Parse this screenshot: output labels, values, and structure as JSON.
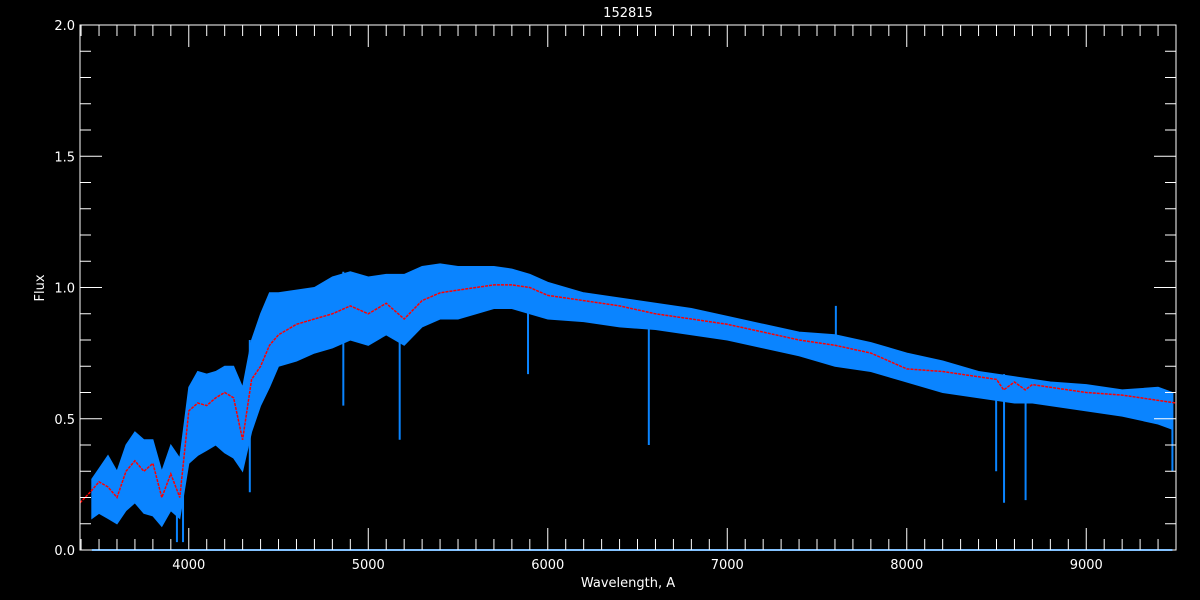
{
  "chart_data": {
    "type": "line",
    "title": "152815",
    "xlabel": "Wavelength, A",
    "ylabel": "Flux",
    "xlim": [
      3394,
      9500
    ],
    "ylim": [
      0.0,
      2.0
    ],
    "x_ticks": [
      4000,
      5000,
      6000,
      7000,
      8000,
      9000
    ],
    "x_minor_step": 100,
    "y_ticks": [
      {
        "value": 0.0,
        "label": "0.0"
      },
      {
        "value": 0.5,
        "label": "0.5"
      },
      {
        "value": 1.0,
        "label": "1.0"
      },
      {
        "value": 1.5,
        "label": "1.5"
      },
      {
        "value": 2.0,
        "label": "2.0"
      }
    ],
    "y_minor_step": 0.1,
    "grid": false,
    "background": "#000000",
    "colors": {
      "observed": "#0a84ff",
      "model": "#ff0000",
      "axes": "#ffffff"
    },
    "observed_band": {
      "x": [
        3460,
        3500,
        3550,
        3600,
        3650,
        3700,
        3750,
        3800,
        3850,
        3900,
        3950,
        4000,
        4050,
        4100,
        4150,
        4200,
        4250,
        4300,
        4350,
        4400,
        4450,
        4500,
        4600,
        4700,
        4800,
        4900,
        5000,
        5100,
        5200,
        5300,
        5400,
        5500,
        5600,
        5700,
        5800,
        5900,
        6000,
        6200,
        6400,
        6600,
        6800,
        7000,
        7200,
        7400,
        7600,
        7800,
        8000,
        8200,
        8400,
        8500,
        8600,
        8700,
        8800,
        9000,
        9200,
        9400,
        9480
      ],
      "upper": [
        0.27,
        0.31,
        0.36,
        0.3,
        0.4,
        0.45,
        0.42,
        0.42,
        0.3,
        0.4,
        0.35,
        0.62,
        0.68,
        0.67,
        0.68,
        0.7,
        0.7,
        0.62,
        0.8,
        0.9,
        0.98,
        0.98,
        0.99,
        1.0,
        1.04,
        1.06,
        1.04,
        1.05,
        1.05,
        1.08,
        1.09,
        1.08,
        1.08,
        1.08,
        1.07,
        1.05,
        1.02,
        0.98,
        0.96,
        0.94,
        0.92,
        0.89,
        0.86,
        0.83,
        0.82,
        0.79,
        0.75,
        0.72,
        0.68,
        0.67,
        0.66,
        0.65,
        0.64,
        0.63,
        0.61,
        0.62,
        0.6
      ],
      "lower": [
        0.12,
        0.14,
        0.12,
        0.1,
        0.15,
        0.18,
        0.14,
        0.13,
        0.09,
        0.15,
        0.12,
        0.33,
        0.36,
        0.38,
        0.4,
        0.37,
        0.35,
        0.3,
        0.45,
        0.55,
        0.62,
        0.7,
        0.72,
        0.75,
        0.77,
        0.8,
        0.78,
        0.82,
        0.78,
        0.85,
        0.88,
        0.88,
        0.9,
        0.92,
        0.92,
        0.9,
        0.88,
        0.87,
        0.85,
        0.84,
        0.82,
        0.8,
        0.77,
        0.74,
        0.7,
        0.68,
        0.64,
        0.6,
        0.58,
        0.57,
        0.56,
        0.56,
        0.55,
        0.53,
        0.51,
        0.48,
        0.46
      ]
    },
    "observed_features": [
      {
        "x": 3934,
        "y": 0.03
      },
      {
        "x": 3968,
        "y": 0.03
      },
      {
        "x": 4340,
        "y": 0.22
      },
      {
        "x": 4861,
        "y": 0.55
      },
      {
        "x": 5175,
        "y": 0.42
      },
      {
        "x": 5890,
        "y": 0.67
      },
      {
        "x": 6563,
        "y": 0.4
      },
      {
        "x": 7605,
        "y": 0.93
      },
      {
        "x": 8498,
        "y": 0.3
      },
      {
        "x": 8542,
        "y": 0.18
      },
      {
        "x": 8662,
        "y": 0.19
      },
      {
        "x": 9480,
        "y": 0.3
      }
    ],
    "model": {
      "x": [
        3394,
        3450,
        3500,
        3550,
        3600,
        3650,
        3700,
        3750,
        3800,
        3850,
        3900,
        3950,
        4000,
        4050,
        4100,
        4150,
        4200,
        4250,
        4300,
        4350,
        4400,
        4450,
        4500,
        4600,
        4700,
        4800,
        4900,
        5000,
        5100,
        5200,
        5300,
        5400,
        5500,
        5600,
        5700,
        5800,
        5900,
        6000,
        6200,
        6400,
        6600,
        6800,
        7000,
        7200,
        7400,
        7600,
        7800,
        8000,
        8200,
        8400,
        8500,
        8540,
        8600,
        8660,
        8700,
        8800,
        9000,
        9200,
        9400,
        9500
      ],
      "y": [
        0.18,
        0.22,
        0.26,
        0.24,
        0.2,
        0.3,
        0.34,
        0.3,
        0.33,
        0.2,
        0.29,
        0.2,
        0.53,
        0.56,
        0.55,
        0.58,
        0.6,
        0.58,
        0.42,
        0.65,
        0.7,
        0.78,
        0.82,
        0.86,
        0.88,
        0.9,
        0.93,
        0.9,
        0.94,
        0.88,
        0.95,
        0.98,
        0.99,
        1.0,
        1.01,
        1.01,
        1.0,
        0.97,
        0.95,
        0.93,
        0.9,
        0.88,
        0.86,
        0.83,
        0.8,
        0.78,
        0.75,
        0.69,
        0.68,
        0.66,
        0.65,
        0.61,
        0.64,
        0.61,
        0.63,
        0.62,
        0.6,
        0.59,
        0.57,
        0.56
      ]
    }
  }
}
